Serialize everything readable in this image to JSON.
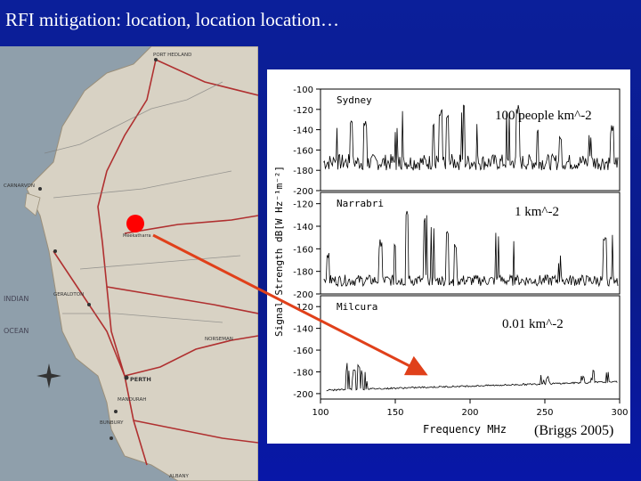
{
  "slide": {
    "title": "RFI mitigation: location, location location…"
  },
  "map": {
    "labels": {
      "port_hedland": "PORT HEDLAND",
      "indian": "INDIAN",
      "ocean": "OCEAN",
      "perth": "PERTH",
      "geraldton": "GERALDTON",
      "carnarvon": "CARNARVON",
      "mandurah": "MANDURAH",
      "bunbury": "BUNBURY",
      "albany": "ALBANY",
      "norseman": "NORSEMAN",
      "meekatharra": "Meekatharra"
    },
    "marker_color": "#ff0000"
  },
  "chart": {
    "ylabel": "Signal Strength dB[W Hz⁻¹m⁻²]",
    "xlabel": "Frequency  MHz",
    "credit": "(Briggs 2005)",
    "arrow_color": "#e0401a"
  },
  "chart_data": {
    "type": "line",
    "x_ticks": [
      "100",
      "150",
      "200",
      "250",
      "300"
    ],
    "xlim": [
      100,
      300
    ],
    "panels": [
      {
        "name": "Sydney",
        "annotation": "100 people km^-2",
        "y_ticks": [
          "-100",
          "-120",
          "-140",
          "-160",
          "-180",
          "-200"
        ],
        "ylim": [
          -200,
          -100
        ],
        "baseline": -172,
        "noise": 8,
        "spikes": [
          [
            110,
            -140
          ],
          [
            120,
            -135
          ],
          [
            130,
            -140
          ],
          [
            150,
            -145
          ],
          [
            155,
            -130
          ],
          [
            175,
            -140
          ],
          [
            180,
            -130
          ],
          [
            185,
            -135
          ],
          [
            195,
            -125
          ],
          [
            205,
            -140
          ],
          [
            225,
            -130
          ],
          [
            232,
            -125
          ],
          [
            245,
            -145
          ],
          [
            260,
            -150
          ],
          [
            280,
            -150
          ],
          [
            295,
            -145
          ]
        ]
      },
      {
        "name": "Narrabri",
        "annotation": "1 km^-2",
        "y_ticks": [
          "-120",
          "-140",
          "-160",
          "-180",
          "-200"
        ],
        "ylim": [
          -200,
          -110
        ],
        "baseline": -188,
        "noise": 5,
        "spikes": [
          [
            105,
            -170
          ],
          [
            140,
            -160
          ],
          [
            150,
            -160
          ],
          [
            158,
            -135
          ],
          [
            170,
            -140
          ],
          [
            175,
            -150
          ],
          [
            185,
            -150
          ],
          [
            190,
            -160
          ],
          [
            218,
            -150
          ],
          [
            230,
            -155
          ],
          [
            260,
            -175
          ],
          [
            290,
            -160
          ],
          [
            296,
            -150
          ]
        ]
      },
      {
        "name": "Milcura",
        "annotation": "0.01 km^-2",
        "y_ticks": [
          "-120",
          "-140",
          "-160",
          "-180",
          "-200"
        ],
        "ylim": [
          -205,
          -110
        ],
        "baseline": -197,
        "noise": 1.5,
        "spikes": [
          [
            118,
            -180
          ],
          [
            122,
            -188
          ],
          [
            125,
            -176
          ],
          [
            127,
            -184
          ],
          [
            130,
            -186
          ],
          [
            132,
            -190
          ],
          [
            248,
            -188
          ],
          [
            252,
            -190
          ],
          [
            275,
            -190
          ],
          [
            282,
            -188
          ],
          [
            292,
            -190
          ]
        ]
      }
    ]
  }
}
